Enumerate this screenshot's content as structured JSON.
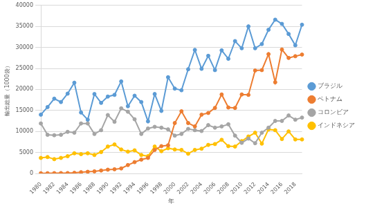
{
  "chart_data": {
    "type": "line",
    "x_label": "年",
    "y_label": "輸出総量（1000袋）",
    "categories": [
      1980,
      null,
      1982,
      null,
      1984,
      null,
      1986,
      null,
      1988,
      null,
      1990,
      null,
      1992,
      null,
      1994,
      null,
      1996,
      null,
      1998,
      null,
      2000,
      null,
      2002,
      null,
      2004,
      null,
      2006,
      null,
      2008,
      null,
      2010,
      null,
      2012,
      null,
      2014,
      null,
      2016,
      null,
      2018,
      null
    ],
    "series": [
      {
        "name": "ブラジル",
        "color": "#5b9bd5",
        "marker": "circle",
        "values": [
          14000,
          15800,
          17800,
          17000,
          19000,
          21600,
          14500,
          12800,
          18900,
          16800,
          18300,
          18700,
          21900,
          16000,
          18500,
          17000,
          12400,
          18900,
          14900,
          22900,
          20200,
          19800,
          24800,
          29400,
          24900,
          28000,
          24600,
          29300,
          27300,
          31500,
          29800,
          35000,
          29800,
          30800,
          34200,
          36600,
          35600,
          33200,
          30500,
          35400
        ]
      },
      {
        "name": "ベトナム",
        "color": "#ed7d31",
        "marker": "circle",
        "values": [
          50,
          60,
          80,
          100,
          100,
          150,
          300,
          400,
          500,
          700,
          900,
          1000,
          1200,
          2000,
          2700,
          3300,
          3700,
          5600,
          6500,
          6700,
          12000,
          14800,
          12000,
          11200,
          14000,
          14400,
          15600,
          18800,
          15700,
          15600,
          18800,
          18700,
          24500,
          24600,
          28400,
          21700,
          29500,
          27500,
          27900,
          28300
        ]
      },
      {
        "name": "コロンビア",
        "color": "#a5a5a5",
        "marker": "circle",
        "values": [
          11900,
          9200,
          9100,
          9200,
          9900,
          9700,
          11900,
          11900,
          9400,
          10300,
          13900,
          12300,
          15500,
          14700,
          12900,
          9400,
          10700,
          11100,
          10900,
          10500,
          9000,
          9400,
          10600,
          10300,
          10100,
          11500,
          10900,
          11200,
          11700,
          9000,
          7300,
          8300,
          7200,
          9700,
          10900,
          12500,
          12500,
          13800,
          12800,
          13300
        ]
      },
      {
        "name": "インドネシア",
        "color": "#ffc000",
        "marker": "circle",
        "values": [
          3700,
          3900,
          3400,
          3700,
          4100,
          4800,
          4600,
          4800,
          4400,
          5100,
          6400,
          6900,
          5700,
          5200,
          5500,
          4400,
          4100,
          6400,
          5300,
          6000,
          5700,
          5600,
          4700,
          5600,
          5900,
          6800,
          7000,
          8000,
          6500,
          6400,
          7700,
          8800,
          9700,
          7100,
          10500,
          10300,
          8200,
          10000,
          8100,
          8100
        ]
      }
    ],
    "ylim": [
      0,
      40000
    ],
    "yticks": [
      0,
      5000,
      10000,
      15000,
      20000,
      25000,
      30000,
      35000,
      40000
    ],
    "grid": true,
    "legend": "right"
  }
}
